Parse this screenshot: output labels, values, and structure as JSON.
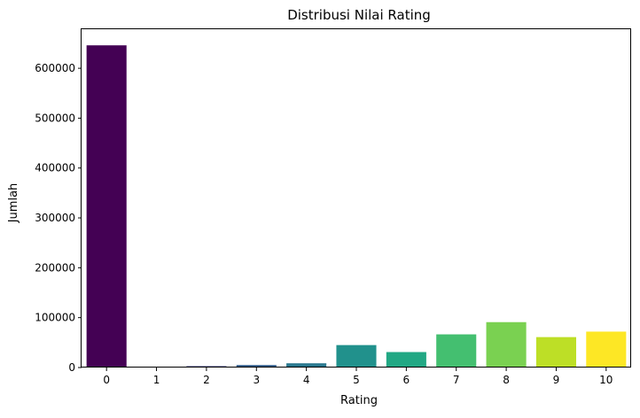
{
  "chart_data": {
    "type": "bar",
    "title": "Distribusi Nilai Rating",
    "xlabel": "Rating",
    "ylabel": "Jumlah",
    "categories": [
      "0",
      "1",
      "2",
      "3",
      "4",
      "5",
      "6",
      "7",
      "8",
      "9",
      "10"
    ],
    "values": [
      646000,
      1500,
      2800,
      5000,
      8500,
      45000,
      31000,
      66500,
      91000,
      61000,
      72000
    ],
    "colors": [
      "#440154",
      "#482475",
      "#414487",
      "#355f8d",
      "#2a788e",
      "#21918c",
      "#22a884",
      "#44bf70",
      "#7ad151",
      "#bddf26",
      "#fde725"
    ],
    "ylim": [
      0,
      678300
    ],
    "yticks": [
      0,
      100000,
      200000,
      300000,
      400000,
      500000,
      600000
    ],
    "ytick_labels": [
      "0",
      "100000",
      "200000",
      "300000",
      "400000",
      "500000",
      "600000"
    ],
    "grid": false,
    "legend": "none"
  }
}
